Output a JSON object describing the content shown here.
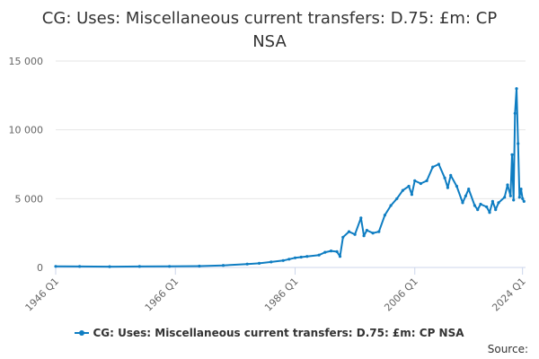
{
  "title": "CG: Uses: Miscellaneous current transfers: D.75: £m: CP NSA",
  "source_label": "Source:",
  "colors": {
    "series": "#0e7dc2",
    "grid": "#e6e6e6",
    "axis": "#ccd6eb"
  },
  "chart_data": {
    "type": "line",
    "title": "CG: Uses: Miscellaneous current transfers: D.75: £m: CP NSA",
    "xlabel": "",
    "ylabel": "",
    "ylim": [
      0,
      15000
    ],
    "yticks": [
      0,
      5000,
      10000,
      15000
    ],
    "ytick_labels": [
      "0",
      "5 000",
      "10 000",
      "15 000"
    ],
    "xticks": [
      "1946 Q1",
      "1966 Q1",
      "1986 Q1",
      "2006 Q1",
      "2024 Q1"
    ],
    "xtick_years": [
      1946,
      1966,
      1986,
      2006,
      2024
    ],
    "grid": true,
    "legend_position": "bottom",
    "series": [
      {
        "name": "CG: Uses: Miscellaneous current transfers: D.75: £m: CP NSA",
        "x": [
          1946,
          1950,
          1955,
          1960,
          1965,
          1970,
          1974,
          1978,
          1980,
          1982,
          1984,
          1985,
          1986,
          1987,
          1988,
          1990,
          1991,
          1992,
          1993,
          1993.5,
          1994,
          1995,
          1996,
          1997,
          1997.5,
          1998,
          1999,
          2000,
          2001,
          2002,
          2003,
          2004,
          2005,
          2005.5,
          2006,
          2007,
          2008,
          2009,
          2010,
          2011,
          2011.5,
          2012,
          2013,
          2014,
          2014.5,
          2015,
          2016,
          2016.5,
          2017,
          2018,
          2018.5,
          2019,
          2019.5,
          2020,
          2021,
          2021.5,
          2022,
          2022.25,
          2022.5,
          2022.75,
          2023,
          2023.25,
          2023.5,
          2023.75,
          2024,
          2024.25
        ],
        "y": [
          80,
          70,
          60,
          70,
          80,
          100,
          150,
          250,
          300,
          400,
          500,
          600,
          700,
          750,
          800,
          900,
          1100,
          1200,
          1150,
          800,
          2200,
          2600,
          2400,
          3600,
          2300,
          2700,
          2500,
          2600,
          3800,
          4500,
          5000,
          5600,
          5900,
          5300,
          6300,
          6100,
          6300,
          7300,
          7500,
          6500,
          5800,
          6700,
          5900,
          4700,
          5200,
          5700,
          4500,
          4200,
          4600,
          4400,
          4000,
          4800,
          4200,
          4700,
          5100,
          6000,
          5200,
          8200,
          4900,
          11200,
          13000,
          9000,
          5100,
          5700,
          5000,
          4800
        ]
      }
    ]
  }
}
